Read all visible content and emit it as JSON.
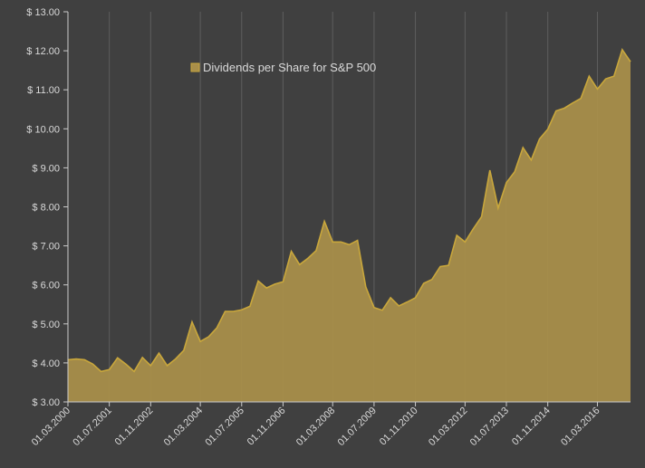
{
  "chart_data": {
    "type": "area",
    "title": "",
    "xlabel": "",
    "ylabel": "",
    "ylim": [
      3.0,
      13.0
    ],
    "yticks": [
      3,
      4,
      5,
      6,
      7,
      8,
      9,
      10,
      11,
      12,
      13
    ],
    "ytick_labels": [
      "$ 3.00",
      "$ 4.00",
      "$ 5.00",
      "$ 6.00",
      "$ 7.00",
      "$ 8.00",
      "$ 9.00",
      "$ 10.00",
      "$ 11.00",
      "$ 12.00",
      "$ 13.00"
    ],
    "x_tick_labels": [
      {
        "index": 0,
        "label": "01.03.2000"
      },
      {
        "index": 5,
        "label": "01.07.2001"
      },
      {
        "index": 10,
        "label": "01.11.2002"
      },
      {
        "index": 16,
        "label": "01.03.2004"
      },
      {
        "index": 21,
        "label": "01.07.2005"
      },
      {
        "index": 26,
        "label": "01.11.2006"
      },
      {
        "index": 32,
        "label": "01.03.2008"
      },
      {
        "index": 37,
        "label": "01.07.2009"
      },
      {
        "index": 42,
        "label": "01.11.2010"
      },
      {
        "index": 48,
        "label": "01.03.2012"
      },
      {
        "index": 53,
        "label": "01.07.2013"
      },
      {
        "index": 58,
        "label": "01.11.2014"
      },
      {
        "index": 64,
        "label": "01.03.2016"
      }
    ],
    "grid": "vertical",
    "legend": "top-left",
    "colors": {
      "fill": "#a88e4a",
      "line": "#c9a73c",
      "grid": "#5e5e5e",
      "axis": "#cccccc",
      "background": "#404040"
    },
    "series": [
      {
        "name": "Dividends per Share for S&P 500",
        "values": [
          4.08,
          4.1,
          4.08,
          3.97,
          3.78,
          3.83,
          4.13,
          3.97,
          3.78,
          4.14,
          3.93,
          4.25,
          3.93,
          4.1,
          4.32,
          5.05,
          4.55,
          4.67,
          4.9,
          5.32,
          5.32,
          5.36,
          5.45,
          6.1,
          5.92,
          6.02,
          6.08,
          6.86,
          6.52,
          6.68,
          6.88,
          7.63,
          7.1,
          7.1,
          7.03,
          7.14,
          5.95,
          5.42,
          5.35,
          5.67,
          5.46,
          5.56,
          5.67,
          6.04,
          6.14,
          6.47,
          6.5,
          7.27,
          7.1,
          7.44,
          7.75,
          8.94,
          7.97,
          8.62,
          8.9,
          9.52,
          9.2,
          9.74,
          9.99,
          10.46,
          10.53,
          10.66,
          10.78,
          11.35,
          11.02,
          11.28,
          11.35,
          12.03,
          11.72
        ]
      }
    ]
  }
}
